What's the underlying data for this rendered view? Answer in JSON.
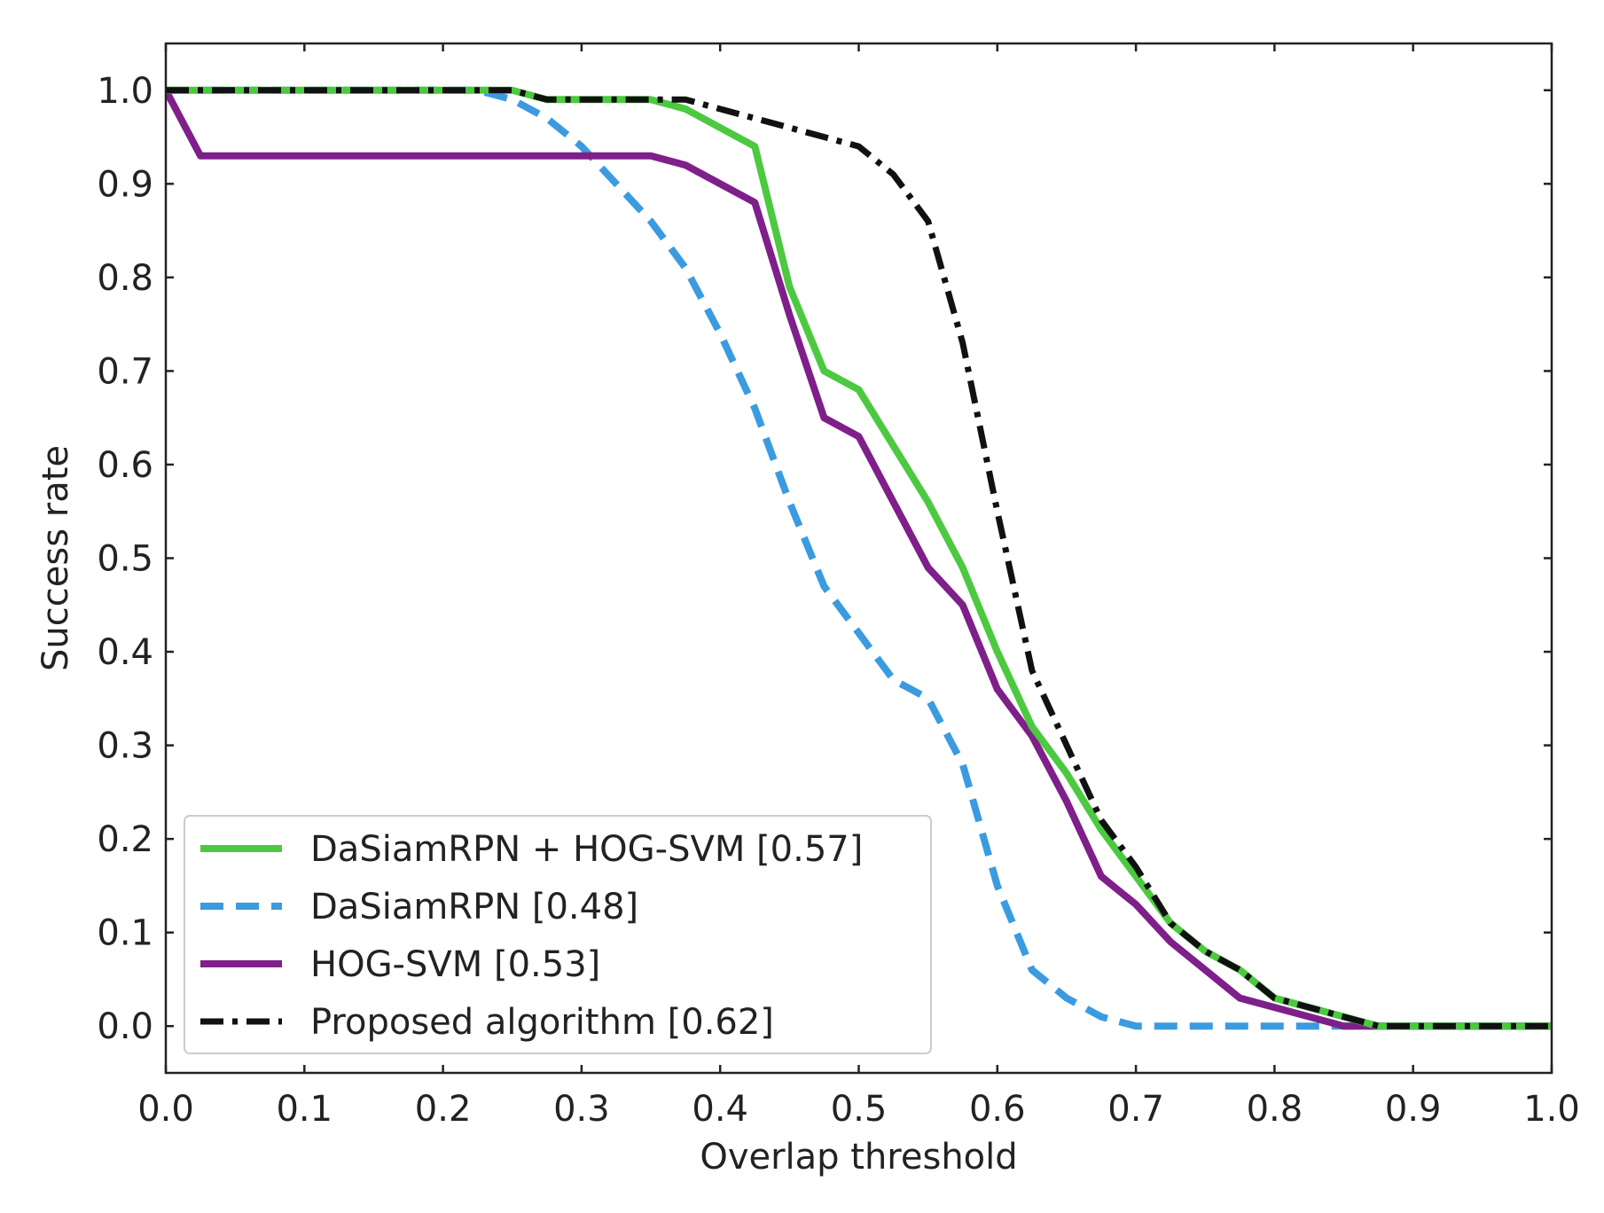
{
  "chart_data": {
    "type": "line",
    "title": "",
    "xlabel": "Overlap threshold",
    "ylabel": "Success rate",
    "xlim": [
      0.0,
      1.0
    ],
    "ylim": [
      -0.05,
      1.05
    ],
    "grid": false,
    "legend_position": "bottom-left",
    "x_ticks": [
      "0.0",
      "0.1",
      "0.2",
      "0.3",
      "0.4",
      "0.5",
      "0.6",
      "0.7",
      "0.8",
      "0.9",
      "1.0"
    ],
    "y_ticks": [
      "0.0",
      "0.1",
      "0.2",
      "0.3",
      "0.4",
      "0.5",
      "0.6",
      "0.7",
      "0.8",
      "0.9",
      "1.0"
    ],
    "x": [
      0.0,
      0.025,
      0.05,
      0.075,
      0.1,
      0.125,
      0.15,
      0.175,
      0.2,
      0.225,
      0.25,
      0.275,
      0.3,
      0.325,
      0.35,
      0.375,
      0.4,
      0.425,
      0.45,
      0.475,
      0.5,
      0.525,
      0.55,
      0.575,
      0.6,
      0.625,
      0.65,
      0.675,
      0.7,
      0.725,
      0.75,
      0.775,
      0.8,
      0.825,
      0.85,
      0.875,
      0.9,
      0.925,
      0.95,
      0.975,
      1.0
    ],
    "series": [
      {
        "name": "DaSiamRPN + HOG-SVM [0.57]",
        "color": "#4cc940",
        "dash": "solid",
        "values": [
          1.0,
          1.0,
          1.0,
          1.0,
          1.0,
          1.0,
          1.0,
          1.0,
          1.0,
          1.0,
          1.0,
          0.99,
          0.99,
          0.99,
          0.99,
          0.98,
          0.96,
          0.94,
          0.79,
          0.7,
          0.68,
          0.62,
          0.56,
          0.49,
          0.4,
          0.32,
          0.27,
          0.21,
          0.16,
          0.11,
          0.08,
          0.06,
          0.03,
          0.02,
          0.01,
          0.0,
          0.0,
          0.0,
          0.0,
          0.0,
          0.0
        ]
      },
      {
        "name": "DaSiamRPN [0.48]",
        "color": "#3a9be0",
        "dash": "dashed",
        "values": [
          1.0,
          1.0,
          1.0,
          1.0,
          1.0,
          1.0,
          1.0,
          1.0,
          1.0,
          1.0,
          0.99,
          0.97,
          0.94,
          0.9,
          0.86,
          0.81,
          0.74,
          0.66,
          0.56,
          0.47,
          0.42,
          0.37,
          0.35,
          0.28,
          0.15,
          0.06,
          0.03,
          0.01,
          0.0,
          0.0,
          0.0,
          0.0,
          0.0,
          0.0,
          0.0,
          0.0,
          0.0,
          0.0,
          0.0,
          0.0,
          0.0
        ]
      },
      {
        "name": "HOG-SVM [0.53]",
        "color": "#7e1f8a",
        "dash": "solid",
        "values": [
          1.0,
          0.93,
          0.93,
          0.93,
          0.93,
          0.93,
          0.93,
          0.93,
          0.93,
          0.93,
          0.93,
          0.93,
          0.93,
          0.93,
          0.93,
          0.92,
          0.9,
          0.88,
          0.76,
          0.65,
          0.63,
          0.56,
          0.49,
          0.45,
          0.36,
          0.31,
          0.24,
          0.16,
          0.13,
          0.09,
          0.06,
          0.03,
          0.02,
          0.01,
          0.0,
          0.0,
          0.0,
          0.0,
          0.0,
          0.0,
          0.0
        ]
      },
      {
        "name": "Proposed algorithm [0.62]",
        "color": "#111111",
        "dash": "dashdot",
        "values": [
          1.0,
          1.0,
          1.0,
          1.0,
          1.0,
          1.0,
          1.0,
          1.0,
          1.0,
          1.0,
          1.0,
          0.99,
          0.99,
          0.99,
          0.99,
          0.99,
          0.98,
          0.97,
          0.96,
          0.95,
          0.94,
          0.91,
          0.86,
          0.73,
          0.55,
          0.38,
          0.3,
          0.22,
          0.17,
          0.11,
          0.08,
          0.06,
          0.03,
          0.02,
          0.01,
          0.0,
          0.0,
          0.0,
          0.0,
          0.0,
          0.0
        ]
      }
    ]
  }
}
